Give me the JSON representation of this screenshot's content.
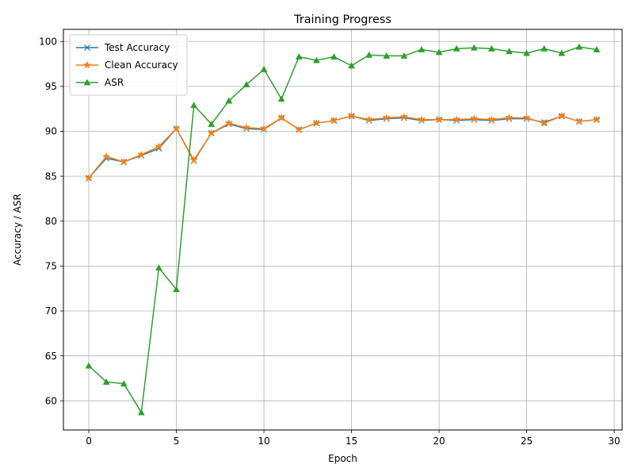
{
  "chart_data": {
    "type": "line",
    "title": "Training Progress",
    "xlabel": "Epoch",
    "ylabel": "Accuracy / ASR",
    "xlim": [
      -1.45,
      30.45
    ],
    "ylim": [
      56.75,
      101.35
    ],
    "xticks": [
      0,
      5,
      10,
      15,
      20,
      25,
      30
    ],
    "yticks": [
      60,
      65,
      70,
      75,
      80,
      85,
      90,
      95,
      100
    ],
    "grid": true,
    "legend_position": "upper-left",
    "x": [
      0,
      1,
      2,
      3,
      4,
      5,
      6,
      7,
      8,
      9,
      10,
      11,
      12,
      13,
      14,
      15,
      16,
      17,
      18,
      19,
      20,
      21,
      22,
      23,
      24,
      25,
      26,
      27,
      28,
      29
    ],
    "series": [
      {
        "name": "Test Accuracy",
        "color": "#1f77b4",
        "marker": "x",
        "values": [
          84.8,
          87.0,
          86.6,
          87.3,
          88.1,
          90.3,
          86.7,
          89.8,
          90.8,
          90.3,
          90.2,
          91.5,
          90.2,
          90.9,
          91.2,
          91.7,
          91.2,
          91.4,
          91.5,
          91.2,
          91.3,
          91.2,
          91.3,
          91.2,
          91.4,
          91.4,
          91.0,
          91.7,
          91.1,
          91.3
        ]
      },
      {
        "name": "Clean Accuracy",
        "color": "#ff7f0e",
        "marker": "star",
        "values": [
          84.8,
          87.2,
          86.6,
          87.4,
          88.3,
          90.3,
          86.8,
          89.8,
          90.9,
          90.4,
          90.3,
          91.5,
          90.2,
          90.9,
          91.2,
          91.7,
          91.3,
          91.5,
          91.6,
          91.3,
          91.3,
          91.3,
          91.4,
          91.3,
          91.5,
          91.5,
          90.9,
          91.7,
          91.1,
          91.3
        ]
      },
      {
        "name": "ASR",
        "color": "#2ca02c",
        "marker": "triangle",
        "values": [
          63.9,
          62.1,
          61.9,
          58.7,
          74.8,
          72.4,
          92.9,
          90.8,
          93.4,
          95.2,
          96.9,
          93.6,
          98.3,
          97.9,
          98.3,
          97.3,
          98.5,
          98.4,
          98.4,
          99.1,
          98.8,
          99.2,
          99.3,
          99.2,
          98.9,
          98.7,
          99.2,
          98.7,
          99.4,
          99.1
        ]
      }
    ]
  }
}
